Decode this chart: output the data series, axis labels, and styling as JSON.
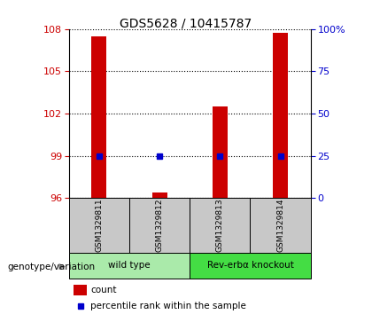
{
  "title": "GDS5628 / 10415787",
  "samples": [
    "GSM1329811",
    "GSM1329812",
    "GSM1329813",
    "GSM1329814"
  ],
  "groups": [
    {
      "label": "wild type",
      "indices": [
        0,
        1
      ],
      "color": "#aaeaaa"
    },
    {
      "label": "Rev-erbα knockout",
      "indices": [
        2,
        3
      ],
      "color": "#44dd44"
    }
  ],
  "count_values": [
    107.5,
    96.4,
    102.5,
    107.7
  ],
  "percentile_values": [
    25.0,
    25.0,
    25.0,
    25.0
  ],
  "ymin": 96,
  "ymax": 108,
  "yticks_left": [
    96,
    99,
    102,
    105,
    108
  ],
  "yticks_right": [
    0,
    25,
    50,
    75,
    100
  ],
  "left_color": "#cc0000",
  "right_color": "#0000cc",
  "bar_color": "#cc0000",
  "dot_color": "#0000cc",
  "bar_width": 0.25,
  "sample_bg_color": "#c8c8c8",
  "xlabel_genotype": "genotype/variation"
}
